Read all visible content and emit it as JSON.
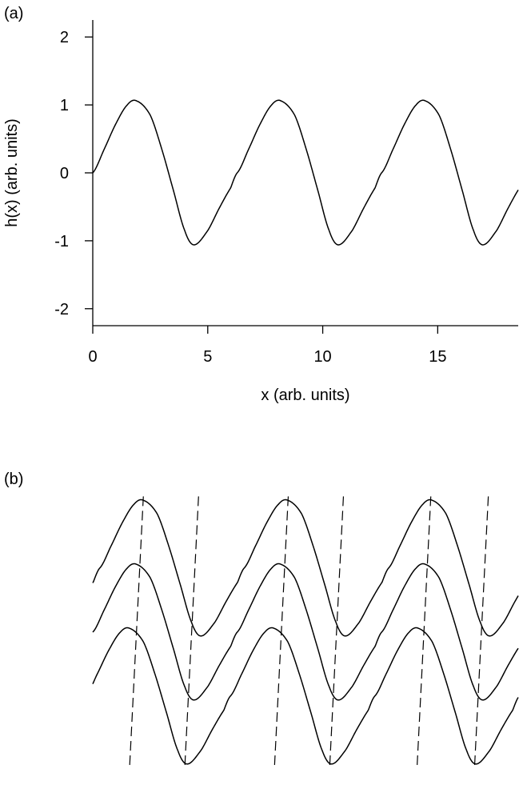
{
  "panels": [
    {
      "label": "(a)"
    },
    {
      "label": "(b)"
    }
  ],
  "chart_data": [
    {
      "panel": "(a)",
      "type": "line",
      "title": "",
      "xlabel": "x (arb. units)",
      "ylabel": "h(x) (arb. units)",
      "xlim": [
        0,
        18.5
      ],
      "ylim": [
        -2.25,
        2.25
      ],
      "xticks": [
        0,
        5,
        10,
        15
      ],
      "yticks": [
        -2,
        -1,
        0,
        1,
        2
      ],
      "grid": false,
      "legend": "none",
      "line_color": "#000000",
      "series": [
        {
          "period": 6.28,
          "x": [
            0,
            0.5,
            1.0,
            1.5,
            1.9,
            2.5,
            3.0,
            3.5,
            4.0,
            4.4,
            5.0,
            5.5,
            6.0,
            6.28
          ],
          "values": [
            0,
            0.35,
            0.72,
            1.0,
            1.06,
            0.85,
            0.35,
            -0.25,
            -0.85,
            -1.06,
            -0.85,
            -0.52,
            -0.22,
            0
          ]
        }
      ]
    },
    {
      "panel": "(b)",
      "type": "line",
      "title": "",
      "xlabel": "",
      "ylabel": "",
      "axes": "hidden",
      "grid": false,
      "legend": "none",
      "line_color": "#000000",
      "profile_period": 6.28,
      "curves": [
        {
          "vertical_offset": 1.0,
          "x_shift": 0.3
        },
        {
          "vertical_offset": 0.0,
          "x_shift": 0.0
        },
        {
          "vertical_offset": -1.0,
          "x_shift": -0.3
        }
      ],
      "dashed_guides": [
        {
          "x_top": 2.2,
          "x_bottom": 1.6
        },
        {
          "x_top": 8.5,
          "x_bottom": 7.9
        },
        {
          "x_top": 14.7,
          "x_bottom": 14.1
        },
        {
          "x_top": 4.6,
          "x_bottom": 4.0
        },
        {
          "x_top": 10.9,
          "x_bottom": 10.3
        },
        {
          "x_top": 17.2,
          "x_bottom": 16.6
        }
      ]
    }
  ]
}
